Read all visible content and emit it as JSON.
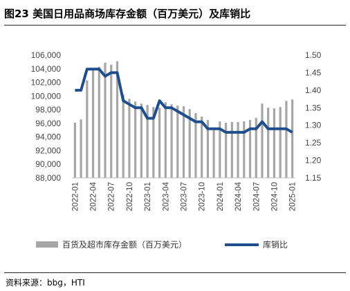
{
  "header": {
    "title": "图23 美国日用品商场库存金额（百万美元）及库销比"
  },
  "footer": {
    "source": "资料来源：bbg，HTI"
  },
  "chart_data": {
    "type": "bar+line",
    "x": [
      "2022-01",
      "2022-02",
      "2022-03",
      "2022-04",
      "2022-05",
      "2022-06",
      "2022-07",
      "2022-08",
      "2022-09",
      "2022-10",
      "2022-11",
      "2022-12",
      "2023-01",
      "2023-02",
      "2023-03",
      "2023-04",
      "2023-05",
      "2023-06",
      "2023-07",
      "2023-08",
      "2023-09",
      "2023-10",
      "2023-11",
      "2023-12",
      "2024-01",
      "2024-02",
      "2024-03",
      "2024-04",
      "2024-05",
      "2024-06",
      "2024-07",
      "2024-08",
      "2024-09",
      "2024-10",
      "2024-11",
      "2024-12",
      "2025-01"
    ],
    "x_tick_labels": [
      "2022-01",
      "2022-04",
      "2022-07",
      "2022-10",
      "2023-01",
      "2023-04",
      "2023-07",
      "2023-10",
      "2024-01",
      "2024-04",
      "2024-07",
      "2024-10",
      "2025-01"
    ],
    "series": [
      {
        "name": "百货及超市库存金额（百万美元）",
        "type": "bar",
        "axis": "left",
        "color": "#a6a6a6",
        "values": [
          96100,
          96600,
          102300,
          103900,
          104300,
          104900,
          104600,
          105100,
          100200,
          99600,
          99200,
          98900,
          98700,
          98400,
          98300,
          99100,
          98800,
          98600,
          98500,
          98100,
          97500,
          97000,
          96500,
          95000,
          96300,
          96100,
          96200,
          96200,
          96300,
          96500,
          96800,
          98900,
          98300,
          98200,
          98400,
          99300,
          99500
        ]
      },
      {
        "name": "库销比",
        "type": "line",
        "axis": "right",
        "color": "#1f4e8c",
        "values": [
          1.4,
          1.4,
          1.46,
          1.46,
          1.46,
          1.44,
          1.45,
          1.45,
          1.37,
          1.36,
          1.35,
          1.35,
          1.32,
          1.32,
          1.37,
          1.35,
          1.35,
          1.34,
          1.33,
          1.32,
          1.31,
          1.31,
          1.29,
          1.29,
          1.29,
          1.28,
          1.28,
          1.28,
          1.28,
          1.29,
          1.29,
          1.31,
          1.29,
          1.29,
          1.29,
          1.29,
          1.28
        ]
      }
    ],
    "y_left": {
      "min": 88000,
      "max": 106000,
      "step": 2000,
      "ticks": [
        "88,000",
        "90,000",
        "92,000",
        "94,000",
        "96,000",
        "98,000",
        "100,000",
        "102,000",
        "104,000",
        "106,000"
      ]
    },
    "y_right": {
      "min": 1.15,
      "max": 1.5,
      "step": 0.05,
      "ticks": [
        "1.15",
        "1.20",
        "1.25",
        "1.30",
        "1.35",
        "1.40",
        "1.45",
        "1.50"
      ]
    },
    "grid": false,
    "legend_position": "bottom"
  }
}
